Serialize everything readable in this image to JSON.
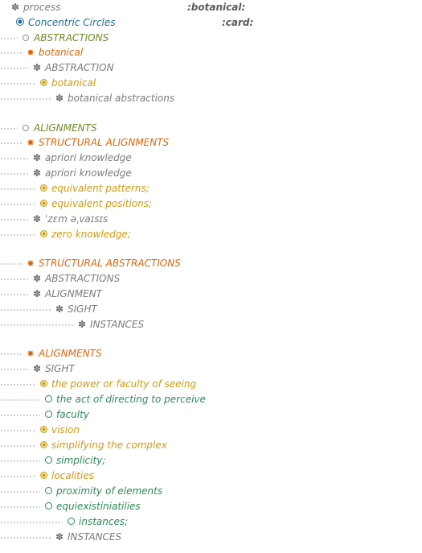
{
  "header": {
    "root_label": "process",
    "tag_botanical": ":botanical:",
    "tag_card": ":card:"
  },
  "lines": [
    {
      "label": "Concentric Circles"
    },
    {
      "label": "ABSTRACTIONS"
    },
    {
      "label": "botanical"
    },
    {
      "label": "ABSTRACTION"
    },
    {
      "label": "botanical"
    },
    {
      "label": "botanical abstractions"
    },
    {
      "label": "ALIGNMENTS"
    },
    {
      "label": "STRUCTURAL ALIGNMENTS"
    },
    {
      "label": "apriori knowledge"
    },
    {
      "label": "apriori knowledge"
    },
    {
      "label": "equivalent patterns;"
    },
    {
      "label": "equivalent positions;"
    },
    {
      "label": "ˈzɛm əˌvaɪsɪs"
    },
    {
      "label": "zero knowledge;"
    },
    {
      "label": "STRUCTURAL ABSTRACTIONS"
    },
    {
      "label": "ABSTRACTIONS"
    },
    {
      "label": "ALIGNMENT"
    },
    {
      "label": "SIGHT"
    },
    {
      "label": "INSTANCES"
    },
    {
      "label": "ALIGNMENTS"
    },
    {
      "label": "SIGHT"
    },
    {
      "label": "the power or faculty of seeing"
    },
    {
      "label": "the act of directing to perceive"
    },
    {
      "label": "faculty"
    },
    {
      "label": "vision"
    },
    {
      "label": "simplifying the complex"
    },
    {
      "label": "simplicity;"
    },
    {
      "label": "localities"
    },
    {
      "label": "proximity of elements"
    },
    {
      "label": "equiexistiniatilies"
    },
    {
      "label": "instances;"
    },
    {
      "label": "INSTANCES"
    }
  ],
  "icons": {
    "flower": "✽",
    "star": "✸"
  },
  "colors": {
    "gray": "#7b7b7b",
    "blue": "#1e6d96",
    "olive": "#6d8b2b",
    "orange": "#d9670f",
    "gold": "#cf9a18",
    "green": "#2e8a57"
  }
}
